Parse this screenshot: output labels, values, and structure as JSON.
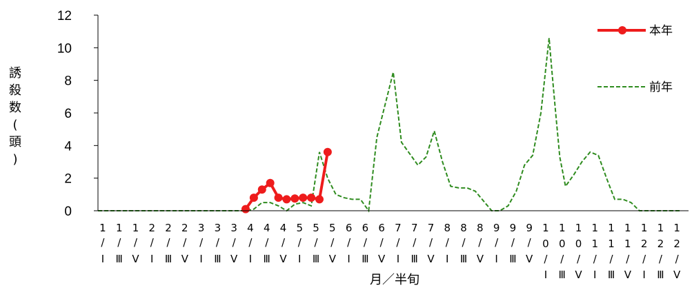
{
  "chart_data": {
    "type": "line",
    "xlabel": "月／半旬",
    "ylabel": "誘殺数(頭)",
    "ylim": [
      0,
      12
    ],
    "yticks": [
      "0",
      "2",
      "4",
      "6",
      "8",
      "10",
      "12"
    ],
    "categories": [
      "1/I",
      "1/III",
      "1/V",
      "2/I",
      "2/III",
      "2/V",
      "3/I",
      "3/III",
      "3/V",
      "4/I",
      "4/III",
      "4/V",
      "5/I",
      "5/III",
      "5/V",
      "6/I",
      "6/III",
      "6/V",
      "7/I",
      "7/III",
      "7/V",
      "8/I",
      "8/III",
      "8/V",
      "9/I",
      "9/III",
      "9/V",
      "10/I",
      "10/III",
      "10/V",
      "11/I",
      "11/III",
      "11/V",
      "12/I",
      "12/III",
      "12/V"
    ],
    "tick_labels": [
      [
        "1",
        "/",
        "I"
      ],
      [
        "1",
        "/",
        "Ⅲ"
      ],
      [
        "1",
        "/",
        "Ⅴ"
      ],
      [
        "2",
        "/",
        "I"
      ],
      [
        "2",
        "/",
        "Ⅲ"
      ],
      [
        "2",
        "/",
        "Ⅴ"
      ],
      [
        "3",
        "/",
        "I"
      ],
      [
        "3",
        "/",
        "Ⅲ"
      ],
      [
        "3",
        "/",
        "Ⅴ"
      ],
      [
        "4",
        "/",
        "I"
      ],
      [
        "4",
        "/",
        "Ⅲ"
      ],
      [
        "4",
        "/",
        "Ⅴ"
      ],
      [
        "5",
        "/",
        "I"
      ],
      [
        "5",
        "/",
        "Ⅲ"
      ],
      [
        "5",
        "/",
        "Ⅴ"
      ],
      [
        "6",
        "/",
        "I"
      ],
      [
        "6",
        "/",
        "Ⅲ"
      ],
      [
        "6",
        "/",
        "Ⅴ"
      ],
      [
        "7",
        "/",
        "I"
      ],
      [
        "7",
        "/",
        "Ⅲ"
      ],
      [
        "7",
        "/",
        "Ⅴ"
      ],
      [
        "8",
        "/",
        "I"
      ],
      [
        "8",
        "/",
        "Ⅲ"
      ],
      [
        "8",
        "/",
        "Ⅴ"
      ],
      [
        "9",
        "/",
        "I"
      ],
      [
        "9",
        "/",
        "Ⅲ"
      ],
      [
        "9",
        "/",
        "Ⅴ"
      ],
      [
        "1",
        "0",
        "/",
        "I"
      ],
      [
        "1",
        "0",
        "/",
        "Ⅲ"
      ],
      [
        "1",
        "0",
        "/",
        "Ⅴ"
      ],
      [
        "1",
        "1",
        "/",
        "I"
      ],
      [
        "1",
        "1",
        "/",
        "Ⅲ"
      ],
      [
        "1",
        "1",
        "/",
        "Ⅴ"
      ],
      [
        "1",
        "2",
        "/",
        "I"
      ],
      [
        "1",
        "2",
        "/",
        "Ⅲ"
      ],
      [
        "1",
        "2",
        "/",
        "Ⅴ"
      ]
    ],
    "series": [
      {
        "name": "本年",
        "color": "#ee1c1c",
        "style": "solid-markers",
        "points": [
          {
            "x": 18.0,
            "y": 0.1
          },
          {
            "x": 19.0,
            "y": 0.8
          },
          {
            "x": 20.0,
            "y": 1.3
          },
          {
            "x": 21.0,
            "y": 1.7
          },
          {
            "x": 22.0,
            "y": 0.8
          },
          {
            "x": 23.0,
            "y": 0.7
          },
          {
            "x": 24.0,
            "y": 0.75
          },
          {
            "x": 25.0,
            "y": 0.8
          },
          {
            "x": 26.0,
            "y": 0.8
          },
          {
            "x": 27.0,
            "y": 0.7
          },
          {
            "x": 28.0,
            "y": 3.6
          }
        ]
      },
      {
        "name": "前年",
        "color": "#2e8b1e",
        "style": "dashed",
        "points": [
          {
            "x": 0,
            "y": 0
          },
          {
            "x": 18.0,
            "y": 0
          },
          {
            "x": 19.0,
            "y": 0.1
          },
          {
            "x": 20.0,
            "y": 0.5
          },
          {
            "x": 21.0,
            "y": 0.5
          },
          {
            "x": 22.0,
            "y": 0.3
          },
          {
            "x": 23.0,
            "y": 0.0
          },
          {
            "x": 24.0,
            "y": 0.4
          },
          {
            "x": 25.0,
            "y": 0.5
          },
          {
            "x": 26.0,
            "y": 0.3
          },
          {
            "x": 27.0,
            "y": 3.6
          },
          {
            "x": 28.0,
            "y": 2.0
          },
          {
            "x": 29.0,
            "y": 1.0
          },
          {
            "x": 30.0,
            "y": 0.8
          },
          {
            "x": 31.0,
            "y": 0.7
          },
          {
            "x": 32.0,
            "y": 0.7
          },
          {
            "x": 33.0,
            "y": 0.0
          },
          {
            "x": 34.0,
            "y": 4.5
          },
          {
            "x": 35.0,
            "y": 6.5
          },
          {
            "x": 36.0,
            "y": 8.5
          },
          {
            "x": 37.0,
            "y": 4.2
          },
          {
            "x": 38.0,
            "y": 3.5
          },
          {
            "x": 39.0,
            "y": 2.8
          },
          {
            "x": 40.0,
            "y": 3.3
          },
          {
            "x": 41.0,
            "y": 4.9
          },
          {
            "x": 42.0,
            "y": 3.0
          },
          {
            "x": 43.0,
            "y": 1.5
          },
          {
            "x": 44.0,
            "y": 1.4
          },
          {
            "x": 45.0,
            "y": 1.4
          },
          {
            "x": 46.0,
            "y": 1.2
          },
          {
            "x": 47.0,
            "y": 0.6
          },
          {
            "x": 48.0,
            "y": 0.0
          },
          {
            "x": 49.0,
            "y": 0.0
          },
          {
            "x": 50.0,
            "y": 0.3
          },
          {
            "x": 51.0,
            "y": 1.2
          },
          {
            "x": 52.0,
            "y": 2.8
          },
          {
            "x": 53.0,
            "y": 3.4
          },
          {
            "x": 54.0,
            "y": 6.0
          },
          {
            "x": 55.0,
            "y": 10.6
          },
          {
            "x": 55.3,
            "y": 8.8
          },
          {
            "x": 55.8,
            "y": 6.0
          },
          {
            "x": 56.3,
            "y": 3.3
          },
          {
            "x": 57.0,
            "y": 1.5
          },
          {
            "x": 58.0,
            "y": 2.2
          },
          {
            "x": 59.0,
            "y": 3.0
          },
          {
            "x": 60.0,
            "y": 3.6
          },
          {
            "x": 61.0,
            "y": 3.4
          },
          {
            "x": 62.0,
            "y": 2.0
          },
          {
            "x": 63.0,
            "y": 0.7
          },
          {
            "x": 64.0,
            "y": 0.7
          },
          {
            "x": 65.0,
            "y": 0.5
          },
          {
            "x": 66.0,
            "y": 0.0
          },
          {
            "x": 71.0,
            "y": 0.0
          }
        ]
      }
    ],
    "legend": {
      "position": "top-right"
    }
  }
}
